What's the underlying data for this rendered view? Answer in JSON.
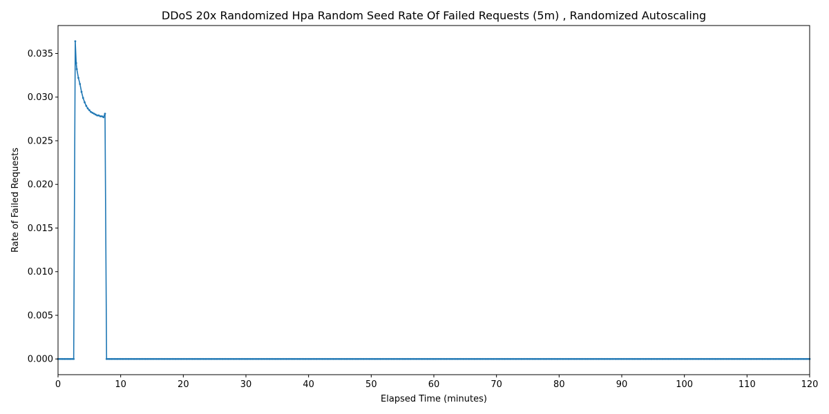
{
  "chart_data": {
    "type": "line",
    "title": "DDoS 20x Randomized Hpa Random Seed Rate Of Failed Requests (5m) , Randomized Autoscaling",
    "xlabel": "Elapsed Time (minutes)",
    "ylabel": "Rate of Failed Requests",
    "xlim": [
      0,
      120
    ],
    "ylim": [
      -0.0018,
      0.0382
    ],
    "xticks": [
      0,
      10,
      20,
      30,
      40,
      50,
      60,
      70,
      80,
      90,
      100,
      110,
      120
    ],
    "xtick_labels": [
      "0",
      "10",
      "20",
      "30",
      "40",
      "50",
      "60",
      "70",
      "80",
      "90",
      "100",
      "110",
      "120"
    ],
    "yticks": [
      0,
      0.005,
      0.01,
      0.015,
      0.02,
      0.025,
      0.03,
      0.035
    ],
    "ytick_labels": [
      "0.000",
      "0.005",
      "0.010",
      "0.015",
      "0.020",
      "0.025",
      "0.030",
      "0.035"
    ],
    "grid": false,
    "legend": "none",
    "series": [
      {
        "color": "#1f77b4",
        "x": [
          0,
          0.25,
          0.5,
          0.75,
          1.0,
          1.25,
          1.5,
          1.75,
          2.0,
          2.25,
          2.5,
          2.75,
          2.9,
          3.0,
          3.25,
          3.5,
          3.75,
          4.0,
          4.25,
          4.5,
          4.75,
          5.0,
          5.25,
          5.5,
          5.75,
          6.0,
          6.25,
          6.5,
          6.75,
          7.0,
          7.25,
          7.5,
          7.75
        ],
        "y": [
          0,
          0,
          0,
          0,
          0,
          0,
          0,
          0,
          0,
          0,
          0,
          0.0364,
          0.0339,
          0.0332,
          0.0322,
          0.0315,
          0.0306,
          0.0299,
          0.0294,
          0.029,
          0.0287,
          0.0285,
          0.0283,
          0.0282,
          0.0281,
          0.028,
          0.0279,
          0.0279,
          0.0278,
          0.0278,
          0.0277,
          0.0281,
          0
        ]
      },
      {
        "color": "#1f77b4",
        "x_start": 7.75,
        "x_end": 120,
        "x_step": 0.25,
        "y": 0
      }
    ]
  }
}
